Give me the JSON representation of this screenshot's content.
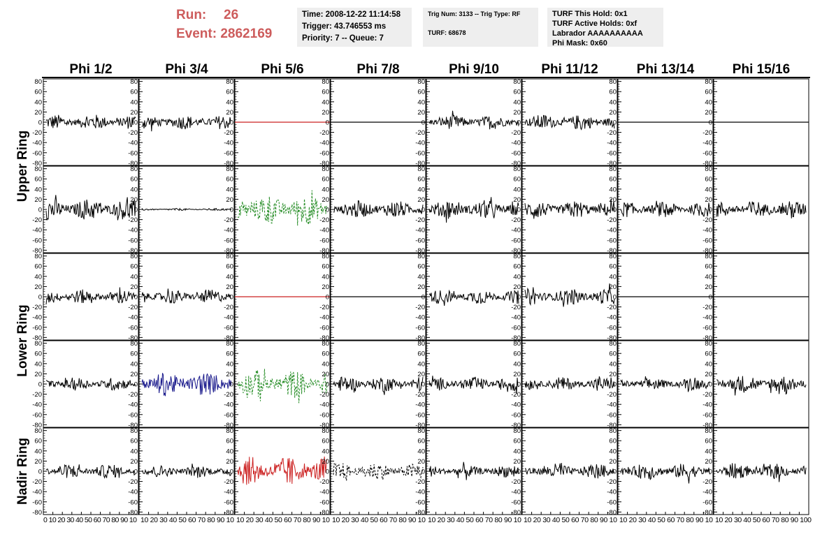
{
  "header": {
    "run_label": "Run:",
    "run_value": "26",
    "event_label": "Event:",
    "event_value": "2862169",
    "time": "Time: 2008-12-22 11:14:58",
    "trigger": "Trigger: 43.746553 ms",
    "priority_queue": "Priority: 7 -- Queue: 7",
    "trig_num_type": "Trig Num: 3133 -- Trig Type: RF",
    "turf": "TURF: 68678",
    "turf_this_hold": "TURF This Hold: 0x1",
    "turf_active_holds": "TURF Active Holds: 0xf",
    "labrador": "Labrador AAAAAAAAAA",
    "phi_mask": "Phi Mask: 0x60"
  },
  "colors": {
    "title_red": "#cd5c5c",
    "info_bg": "#eeeeee",
    "trace_default": "#000000",
    "trace_red": "#cc2222",
    "trace_green": "#228b22",
    "trace_blue": "#1a1a8c"
  },
  "chart_data": {
    "type": "line",
    "columns": [
      "Phi 1/2",
      "Phi 3/4",
      "Phi 5/6",
      "Phi 7/8",
      "Phi 9/10",
      "Phi 11/12",
      "Phi 13/14",
      "Phi 15/16"
    ],
    "ring_labels": [
      "Upper Ring",
      "Lower Ring",
      "Nadir Ring"
    ],
    "ylim": [
      -85,
      85
    ],
    "y_ticks": [
      -80,
      -60,
      -40,
      -20,
      0,
      20,
      40,
      60,
      80
    ],
    "xlim": [
      0,
      100
    ],
    "x_tick_label_rows": [
      "0 10 20 30 40 50 60 70 80 90 10",
      "10 20 30 40 50 60 70 80 90 10",
      "10 20 30 40 50 60 70 80 90 10",
      "10 20 30 40 50 60 70 80 90 10",
      "10 20 30 40 50 60 70 80 90 10",
      "10 20 30 40 50 60 70 80 90 10",
      "10 20 30 40 50 60 70 80 90 10",
      "10 20 30 40 50 60 70 80 90 100"
    ],
    "panels": [
      [
        {
          "style": "noise",
          "amp": 14,
          "color": "#000000"
        },
        {
          "style": "noise",
          "amp": 13,
          "color": "#000000"
        },
        {
          "style": "flat",
          "color": "#cc2222"
        },
        {
          "style": "flat",
          "color": "#000000"
        },
        {
          "style": "noise",
          "amp": 13,
          "color": "#000000"
        },
        {
          "style": "noise",
          "amp": 14,
          "color": "#000000"
        },
        {
          "style": "flat",
          "color": "#000000"
        },
        {
          "style": "flat",
          "color": "#000000"
        }
      ],
      [
        {
          "style": "noise",
          "amp": 20,
          "color": "#000000"
        },
        {
          "style": "noise",
          "amp": 2,
          "color": "#000000"
        },
        {
          "style": "dashed",
          "amp": 28,
          "color": "#228b22"
        },
        {
          "style": "noise",
          "amp": 16,
          "color": "#000000"
        },
        {
          "style": "noise",
          "amp": 17,
          "color": "#000000"
        },
        {
          "style": "noise",
          "amp": 16,
          "color": "#000000"
        },
        {
          "style": "noise",
          "amp": 14,
          "color": "#000000"
        },
        {
          "style": "noise",
          "amp": 16,
          "color": "#000000"
        }
      ],
      [
        {
          "style": "noise",
          "amp": 13,
          "color": "#000000"
        },
        {
          "style": "noise",
          "amp": 13,
          "color": "#000000"
        },
        {
          "style": "flat",
          "color": "#cc2222"
        },
        {
          "style": "flat",
          "color": "#000000"
        },
        {
          "style": "noise",
          "amp": 13,
          "color": "#000000"
        },
        {
          "style": "noise",
          "amp": 15,
          "color": "#000000"
        },
        {
          "style": "flat",
          "color": "#000000"
        },
        {
          "style": "flat",
          "color": "#000000"
        }
      ],
      [
        {
          "style": "noise",
          "amp": 12,
          "color": "#000000"
        },
        {
          "style": "noise",
          "amp": 22,
          "color": "#1a1a8c"
        },
        {
          "style": "dashed",
          "amp": 25,
          "color": "#228b22"
        },
        {
          "style": "noise",
          "amp": 14,
          "color": "#000000"
        },
        {
          "style": "noise",
          "amp": 13,
          "color": "#000000"
        },
        {
          "style": "noise",
          "amp": 12,
          "color": "#000000"
        },
        {
          "style": "noise",
          "amp": 11,
          "color": "#000000"
        },
        {
          "style": "noise",
          "amp": 16,
          "color": "#000000"
        }
      ],
      [
        {
          "style": "noise",
          "amp": 13,
          "color": "#000000"
        },
        {
          "style": "noise",
          "amp": 11,
          "color": "#000000"
        },
        {
          "style": "noise",
          "amp": 26,
          "color": "#cc2222"
        },
        {
          "style": "dashed",
          "amp": 16,
          "color": "#000000"
        },
        {
          "style": "noise",
          "amp": 11,
          "color": "#000000"
        },
        {
          "style": "noise",
          "amp": 14,
          "color": "#000000"
        },
        {
          "style": "noise",
          "amp": 15,
          "color": "#000000"
        },
        {
          "style": "noise",
          "amp": 14,
          "color": "#000000"
        }
      ]
    ]
  }
}
